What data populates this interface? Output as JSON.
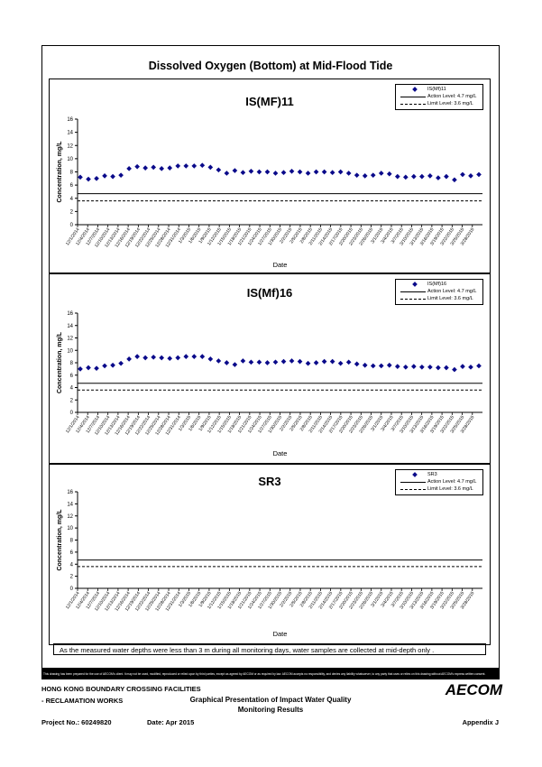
{
  "title": "Dissolved Oxygen (Bottom) at Mid-Flood Tide",
  "footnote": "As the measured water depths were less than 3 m during all monitoring days, water samples are collected  at  mid-depth only .",
  "disclaimer": "This drawing has been prepared for the use of AECOM's client. It may not be used, modified, reproduced or relied upon by third parties, except as agreed by AECOM or as required by law. AECOM accepts no responsibility, and denies any liability whatsoever, to any party that uses or relies on this drawing without AECOM's express written consent.",
  "footer": {
    "line1": "HONG KONG BOUNDARY CROSSING FACILITIES",
    "line2": "- RECLAMATION WORKS",
    "project": "Project No.: 60249820",
    "date": "Date: Apr 2015",
    "report_title_1": "Graphical Presentation of Impact Water Quality",
    "report_title_2": "Monitoring Results",
    "appendix": "Appendix J",
    "logo": "AECOM"
  },
  "chart_data": [
    {
      "type": "scatter",
      "title": "IS(MF)11",
      "xlabel": "Date",
      "ylabel": "Concentration, mg/L",
      "ylim": [
        0,
        16
      ],
      "yticks": [
        0,
        2,
        4,
        6,
        8,
        10,
        12,
        14,
        16
      ],
      "xticks": [
        "12/1/2014",
        "12/4/2014",
        "12/7/2014",
        "12/10/2014",
        "12/13/2014",
        "12/16/2014",
        "12/19/2014",
        "12/22/2014",
        "12/25/2014",
        "12/28/2014",
        "12/31/2014",
        "1/3/2015",
        "1/6/2015",
        "1/9/2015",
        "1/12/2015",
        "1/15/2015",
        "1/18/2015",
        "1/21/2015",
        "1/24/2015",
        "1/27/2015",
        "1/30/2015",
        "2/2/2015",
        "2/5/2015",
        "2/8/2015",
        "2/11/2015",
        "2/14/2015",
        "2/17/2015",
        "2/20/2015",
        "2/23/2015",
        "2/26/2015",
        "3/1/2015",
        "3/4/2015",
        "3/7/2015",
        "3/10/2015",
        "3/13/2015",
        "3/16/2015",
        "3/19/2015",
        "3/22/2015",
        "3/25/2015",
        "3/28/2015"
      ],
      "legend": {
        "series": "IS(Mf)11",
        "action": "Action Level: 4.7 mg/L",
        "limit": "Limit Level: 3.6 mg/L",
        "position": "top-right"
      },
      "action_level": 4.7,
      "limit_level": 3.6,
      "series": [
        {
          "name": "IS(Mf)11",
          "values": [
            7.2,
            6.9,
            7.0,
            7.4,
            7.3,
            7.5,
            8.5,
            8.8,
            8.6,
            8.7,
            8.5,
            8.6,
            8.9,
            8.9,
            8.9,
            9.0,
            8.7,
            8.3,
            7.8,
            8.2,
            7.9,
            8.1,
            8.0,
            8.0,
            7.8,
            7.9,
            8.1,
            8.0,
            7.8,
            8.0,
            8.0,
            7.9,
            8.0,
            7.8,
            7.5,
            7.4,
            7.5,
            7.8,
            7.7,
            7.3,
            7.2,
            7.3,
            7.3,
            7.4,
            7.1,
            7.3,
            6.8,
            7.6,
            7.4,
            7.6
          ]
        }
      ]
    },
    {
      "type": "scatter",
      "title": "IS(Mf)16",
      "xlabel": "Date",
      "ylabel": "Concentration, mg/L",
      "ylim": [
        0,
        16
      ],
      "yticks": [
        0,
        2,
        4,
        6,
        8,
        10,
        12,
        14,
        16
      ],
      "xticks": [
        "12/1/2014",
        "12/4/2014",
        "12/7/2014",
        "12/10/2014",
        "12/13/2014",
        "12/16/2014",
        "12/19/2014",
        "12/22/2014",
        "12/25/2014",
        "12/28/2014",
        "12/31/2014",
        "1/3/2015",
        "1/6/2015",
        "1/9/2015",
        "1/12/2015",
        "1/15/2015",
        "1/18/2015",
        "1/21/2015",
        "1/24/2015",
        "1/27/2015",
        "1/30/2015",
        "2/2/2015",
        "2/5/2015",
        "2/8/2015",
        "2/11/2015",
        "2/14/2015",
        "2/17/2015",
        "2/20/2015",
        "2/23/2015",
        "2/26/2015",
        "3/1/2015",
        "3/4/2015",
        "3/7/2015",
        "3/10/2015",
        "3/13/2015",
        "3/16/2015",
        "3/19/2015",
        "3/22/2015",
        "3/25/2015",
        "3/28/2015"
      ],
      "legend": {
        "series": "IS(Mf)16",
        "action": "Action Level: 4.7 mg/L",
        "limit": "Limit Level: 3.6 mg/L",
        "position": "top-right"
      },
      "action_level": 4.7,
      "limit_level": 3.6,
      "series": [
        {
          "name": "IS(Mf)16",
          "values": [
            7.0,
            7.2,
            7.1,
            7.5,
            7.6,
            7.9,
            8.6,
            9.0,
            8.8,
            8.9,
            8.8,
            8.7,
            8.8,
            9.0,
            9.0,
            9.0,
            8.6,
            8.3,
            8.0,
            7.7,
            8.3,
            8.1,
            8.1,
            8.0,
            8.1,
            8.2,
            8.3,
            8.2,
            7.9,
            8.0,
            8.2,
            8.2,
            7.9,
            8.1,
            7.8,
            7.6,
            7.5,
            7.5,
            7.6,
            7.4,
            7.3,
            7.4,
            7.3,
            7.3,
            7.2,
            7.2,
            6.9,
            7.4,
            7.3,
            7.5
          ]
        }
      ]
    },
    {
      "type": "scatter",
      "title": "SR3",
      "xlabel": "Date",
      "ylabel": "Concentration, mg/L",
      "ylim": [
        0,
        16
      ],
      "yticks": [
        0,
        2,
        4,
        6,
        8,
        10,
        12,
        14,
        16
      ],
      "xticks": [
        "12/1/2014",
        "12/4/2014",
        "12/7/2014",
        "12/10/2014",
        "12/13/2014",
        "12/16/2014",
        "12/19/2014",
        "12/22/2014",
        "12/25/2014",
        "12/28/2014",
        "12/31/2014",
        "1/3/2015",
        "1/6/2015",
        "1/9/2015",
        "1/12/2015",
        "1/15/2015",
        "1/18/2015",
        "1/21/2015",
        "1/24/2015",
        "1/27/2015",
        "1/30/2015",
        "2/2/2015",
        "2/5/2015",
        "2/8/2015",
        "2/11/2015",
        "2/14/2015",
        "2/17/2015",
        "2/20/2015",
        "2/23/2015",
        "2/26/2015",
        "3/1/2015",
        "3/4/2015",
        "3/7/2015",
        "3/10/2015",
        "3/13/2015",
        "3/16/2015",
        "3/19/2015",
        "3/22/2015",
        "3/25/2015",
        "3/28/2015"
      ],
      "legend": {
        "series": "SR3",
        "action": "Action Level: 4.7 mg/L",
        "limit": "Limit Level: 3.6 mg/L",
        "position": "top-right"
      },
      "action_level": 4.7,
      "limit_level": 3.6,
      "series": [
        {
          "name": "SR3",
          "values": []
        }
      ]
    }
  ]
}
